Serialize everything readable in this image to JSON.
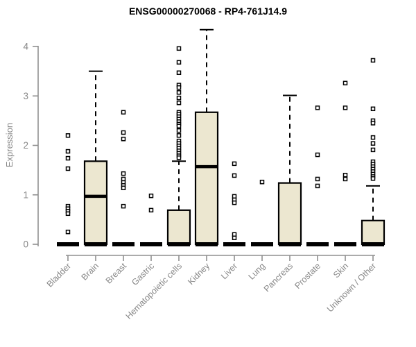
{
  "chart_data": {
    "type": "boxplot",
    "title": "ENSG00000270068 - RP4-761J14.9",
    "ylabel": "Expression",
    "ylim": [
      0,
      4.4
    ],
    "yticks": [
      0,
      1,
      2,
      3,
      4
    ],
    "grid": false,
    "legend": "none",
    "categories": [
      "Bladder",
      "Brain",
      "Breast",
      "Gastric",
      "Hematopoietic cells",
      "Kidney",
      "Liver",
      "Lung",
      "Pancreas",
      "Prostate",
      "Skin",
      "Unknown / Other"
    ],
    "boxes": [
      {
        "label": "Bladder",
        "q1": 0,
        "median": 0,
        "q3": 0,
        "whisker_low": 0,
        "whisker_high": 0,
        "outliers": [
          2.2,
          1.88,
          1.74,
          1.53,
          0.77,
          0.72,
          0.67,
          0.62,
          0.25
        ]
      },
      {
        "label": "Brain",
        "q1": 0,
        "median": 0.97,
        "q3": 1.68,
        "whisker_low": 0,
        "whisker_high": 3.5,
        "outliers": []
      },
      {
        "label": "Breast",
        "q1": 0,
        "median": 0,
        "q3": 0,
        "whisker_low": 0,
        "whisker_high": 0,
        "outliers": [
          2.67,
          2.26,
          2.13,
          1.43,
          1.32,
          1.25,
          1.19,
          1.14,
          0.77
        ]
      },
      {
        "label": "Gastric",
        "q1": 0,
        "median": 0,
        "q3": 0,
        "whisker_low": 0,
        "whisker_high": 0,
        "outliers": [
          0.98,
          0.69
        ]
      },
      {
        "label": "Hematopoietic cells",
        "q1": 0,
        "median": 0,
        "q3": 0.69,
        "whisker_low": 0,
        "whisker_high": 1.68,
        "outliers": [
          3.96,
          3.68,
          3.47,
          3.22,
          3.17,
          3.07,
          2.96,
          2.86,
          2.67,
          2.63,
          2.58,
          2.53,
          2.48,
          2.43,
          2.39,
          2.3,
          2.2,
          2.09,
          2.04,
          1.99,
          1.94,
          1.89,
          1.84,
          1.79,
          1.75
        ]
      },
      {
        "label": "Kidney",
        "q1": 0,
        "median": 1.57,
        "q3": 2.67,
        "whisker_low": 0,
        "whisker_high": 4.34,
        "outliers": []
      },
      {
        "label": "Liver",
        "q1": 0,
        "median": 0,
        "q3": 0,
        "whisker_low": 0,
        "whisker_high": 0,
        "outliers": [
          1.63,
          1.39,
          0.97,
          0.9,
          0.84,
          0.2,
          0.13
        ]
      },
      {
        "label": "Lung",
        "q1": 0,
        "median": 0,
        "q3": 0,
        "whisker_low": 0,
        "whisker_high": 0,
        "outliers": [
          1.26
        ]
      },
      {
        "label": "Pancreas",
        "q1": 0,
        "median": 0,
        "q3": 1.24,
        "whisker_low": 0,
        "whisker_high": 3.01,
        "outliers": []
      },
      {
        "label": "Prostate",
        "q1": 0,
        "median": 0,
        "q3": 0,
        "whisker_low": 0,
        "whisker_high": 0,
        "outliers": [
          2.76,
          1.81,
          1.32,
          1.18
        ]
      },
      {
        "label": "Skin",
        "q1": 0,
        "median": 0,
        "q3": 0,
        "whisker_low": 0,
        "whisker_high": 0,
        "outliers": [
          3.26,
          2.76,
          1.4,
          1.32
        ]
      },
      {
        "label": "Unknown / Other",
        "q1": 0,
        "median": 0,
        "q3": 0.48,
        "whisker_low": 0,
        "whisker_high": 1.18,
        "outliers": [
          3.72,
          2.74,
          2.5,
          2.45,
          2.16,
          2.04,
          1.91,
          1.67,
          1.62,
          1.57,
          1.52,
          1.47,
          1.42,
          1.37,
          1.33
        ]
      }
    ],
    "colors": {
      "box_fill": "#ece7d0",
      "box_stroke": "#000000",
      "median": "#000000",
      "axis": "#8f8f8f",
      "tick_label": "#878787",
      "title": "#000000",
      "background": "#ffffff"
    }
  }
}
